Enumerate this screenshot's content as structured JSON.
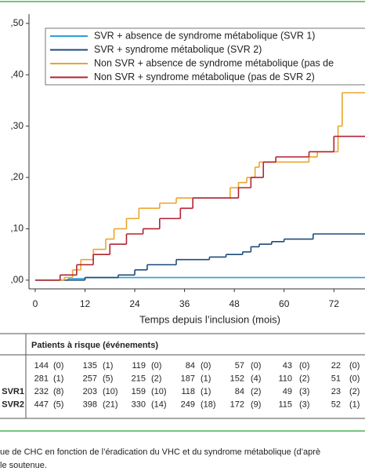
{
  "chart_data": {
    "type": "step",
    "xlabel": "Temps depuis l’inclusion (mois)",
    "xlim": [
      -1.5,
      79.5
    ],
    "xticks": [
      0,
      12,
      24,
      36,
      48,
      60,
      72
    ],
    "ylim": [
      -0.017,
      0.515
    ],
    "yticks": [
      {
        "value": 0.5,
        "label": ",50"
      },
      {
        "value": 0.4,
        "label": ",40"
      },
      {
        "value": 0.3,
        "label": ",30"
      },
      {
        "value": 0.2,
        "label": ",20"
      },
      {
        "value": 0.1,
        "label": ",10"
      },
      {
        "value": 0,
        "label": ",00"
      }
    ],
    "series": [
      {
        "name": "SVR + absence de syndrome métabolique  (SVR 1)",
        "color": "#2f9fd8",
        "x": [
          0,
          8,
          12,
          79.5
        ],
        "values": [
          0,
          0.003,
          0.005,
          0.005
        ]
      },
      {
        "name": "SVR + syndrome métabolique (SVR 2)",
        "color": "#1f4a7a",
        "x": [
          0,
          12,
          20,
          24,
          27,
          34,
          42,
          46,
          50,
          52,
          54,
          57,
          60,
          67,
          79.5
        ],
        "values": [
          0,
          0.005,
          0.01,
          0.02,
          0.03,
          0.04,
          0.045,
          0.05,
          0.055,
          0.065,
          0.07,
          0.075,
          0.08,
          0.09,
          0.09
        ]
      },
      {
        "name": "Non SVR + absence de syndrome métabolique (pas de",
        "color": "#eba52a",
        "x": [
          0,
          7,
          9,
          11,
          14,
          17,
          19,
          22,
          25,
          30,
          34,
          47,
          49,
          51,
          53,
          54,
          66,
          68,
          73,
          74,
          79.5
        ],
        "values": [
          0,
          0.005,
          0.02,
          0.04,
          0.06,
          0.08,
          0.1,
          0.12,
          0.14,
          0.15,
          0.16,
          0.18,
          0.19,
          0.2,
          0.22,
          0.23,
          0.24,
          0.25,
          0.3,
          0.365,
          0.365
        ]
      },
      {
        "name": "Non SVR + syndrome métabolique (pas de SVR 2)",
        "color": "#b22234",
        "x": [
          0,
          6,
          10,
          14,
          18,
          22,
          26,
          30,
          35,
          38,
          49,
          52,
          55,
          58,
          66,
          72,
          79.5
        ],
        "values": [
          0,
          0.01,
          0.03,
          0.05,
          0.07,
          0.09,
          0.1,
          0.12,
          0.14,
          0.16,
          0.18,
          0.2,
          0.23,
          0.24,
          0.25,
          0.28,
          0.28
        ]
      }
    ]
  },
  "table": {
    "header": "Patients à risque (événements)",
    "rows": [
      {
        "cells": [
          "144",
          "(0)",
          "135",
          "(1)",
          "119",
          "(0)",
          "84",
          "(0)",
          "57",
          "(0)",
          "43",
          "(0)",
          "22",
          "(0)"
        ]
      },
      {
        "cells": [
          "281",
          "(1)",
          "257",
          "(5)",
          "215",
          "(2)",
          "187",
          "(1)",
          "152",
          "(4)",
          "110",
          "(2)",
          "51",
          "(0)"
        ]
      },
      {
        "label": "SVR1",
        "cells": [
          "232",
          "(8)",
          "203",
          "(10)",
          "159",
          "(10)",
          "118",
          "(1)",
          "84",
          "(2)",
          "49",
          "(3)",
          "23",
          "(2)"
        ]
      },
      {
        "label": "SVR2",
        "cells": [
          "447",
          "(5)",
          "398",
          "(21)",
          "330",
          "(14)",
          "249",
          "(18)",
          "172",
          "(9)",
          "115",
          "(3)",
          "52",
          "(1)"
        ]
      }
    ]
  },
  "caption": [
    "ue de CHC en fonction de l’éradication du VHC et du syndrome métabolique (d’aprè",
    "le soutenue."
  ]
}
